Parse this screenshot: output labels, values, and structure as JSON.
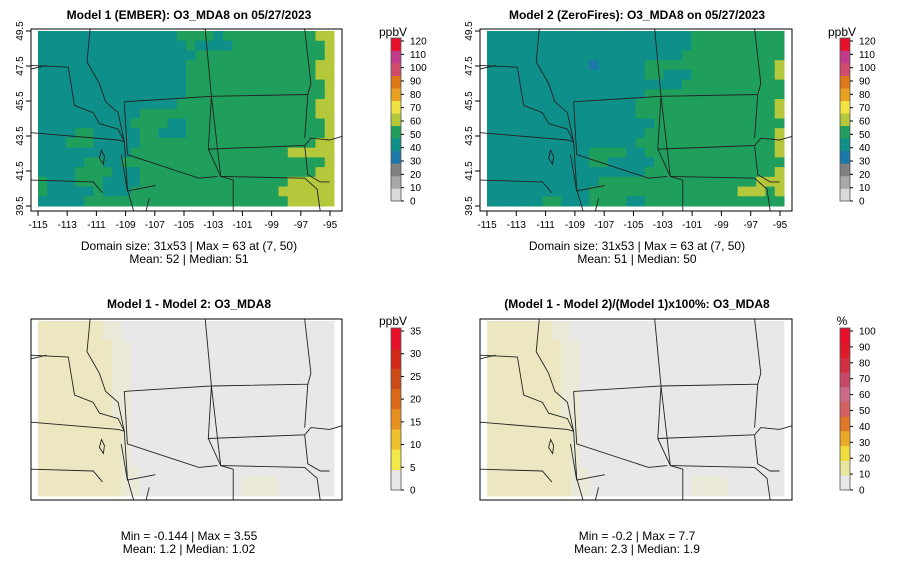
{
  "panels": [
    {
      "id": "p1",
      "title": "Model 1 (EMBER): O3_MDA8 on 05/27/2023",
      "stats_line1": "Domain size: 31x53 | Max = 63 at (7, 50)",
      "stats_line2": "Mean: 52 |  Median: 51",
      "colorbar_unit": "ppbV",
      "colorbar_ticks": [
        "0",
        "10",
        "20",
        "30",
        "40",
        "50",
        "60",
        "70",
        "80",
        "90",
        "100",
        "110",
        "120"
      ],
      "has_axes": true
    },
    {
      "id": "p2",
      "title": "Model 2 (ZeroFires): O3_MDA8 on 05/27/2023",
      "stats_line1": "Domain size: 31x53 | Max = 63 at (7, 50)",
      "stats_line2": "Mean: 51 |  Median: 50",
      "colorbar_unit": "ppbV",
      "colorbar_ticks": [
        "0",
        "10",
        "20",
        "30",
        "40",
        "50",
        "60",
        "70",
        "80",
        "90",
        "100",
        "110",
        "120"
      ],
      "has_axes": true
    },
    {
      "id": "p3",
      "title": "Model 1 - Model 2: O3_MDA8",
      "stats_line1": "Min = -0.144 | Max = 3.55",
      "stats_line2": "Mean: 1.2 |  Median: 1.02",
      "colorbar_unit": "ppbV",
      "colorbar_ticks": [
        "0",
        "5",
        "10",
        "15",
        "20",
        "25",
        "30",
        "35"
      ],
      "has_axes": false
    },
    {
      "id": "p4",
      "title": "(Model 1 - Model 2)/(Model 1)x100%: O3_MDA8",
      "stats_line1": "Min = -0.2 | Max = 7.7",
      "stats_line2": "Mean: 2.3 |  Median: 1.9",
      "colorbar_unit": "%",
      "colorbar_ticks": [
        "0",
        "10",
        "20",
        "30",
        "40",
        "50",
        "60",
        "70",
        "80",
        "90",
        "100"
      ],
      "has_axes": false
    }
  ],
  "x_ticks": [
    "-115",
    "-113",
    "-111",
    "-109",
    "-107",
    "-105",
    "-103",
    "-101",
    "-99",
    "-97",
    "-95"
  ],
  "y_ticks": [
    "39.5",
    "41.5",
    "43.5",
    "45.5",
    "47.5",
    "49.5"
  ],
  "colors": {
    "conc_scale": [
      "#d9d9d9",
      "#a8a8a8",
      "#7f7f7f",
      "#1b78a8",
      "#0e8f8a",
      "#1f9e5c",
      "#b5c73a",
      "#f0e240",
      "#e8a020",
      "#e07818",
      "#d24a6a",
      "#c43a8a",
      "#e8102a"
    ],
    "diff_scale": [
      "#e8e8e8",
      "#f2e84a",
      "#eec02a",
      "#e89020",
      "#dc6818",
      "#cc4a18",
      "#d22818",
      "#e8102a"
    ],
    "pct_scale": [
      "#e8e8e8",
      "#eae6a0",
      "#eedc40",
      "#eca828",
      "#e07828",
      "#d46060",
      "#cc6a8a",
      "#c8486a",
      "#d23040",
      "#e01828",
      "#e8102a"
    ]
  }
}
